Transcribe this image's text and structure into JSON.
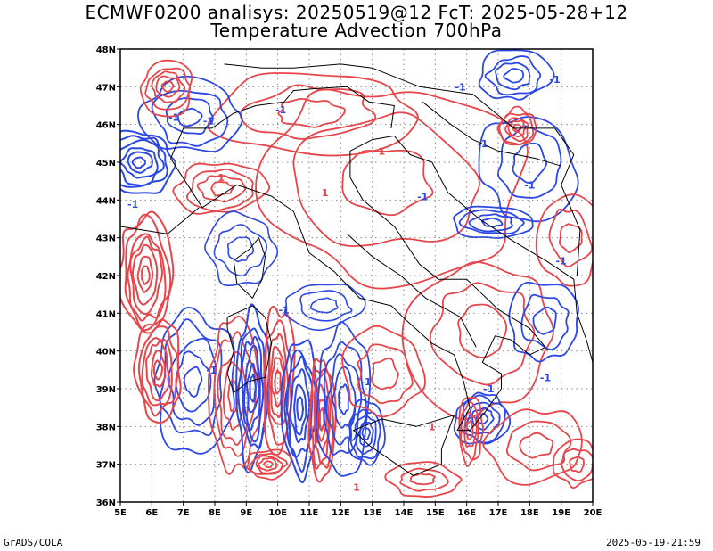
{
  "title": {
    "line1": "ECMWF0200 analisys: 20250519@12 FcT: 2025-05-28+12",
    "line2": "Temperature Advection 700hPa"
  },
  "map": {
    "lon_range": [
      5,
      20
    ],
    "lat_range": [
      36,
      48
    ],
    "lon_ticks": [
      "5E",
      "6E",
      "7E",
      "8E",
      "9E",
      "10E",
      "11E",
      "12E",
      "13E",
      "14E",
      "15E",
      "16E",
      "17E",
      "18E",
      "19E",
      "20E"
    ],
    "lat_ticks": [
      "36N",
      "37N",
      "38N",
      "39N",
      "40N",
      "41N",
      "42N",
      "43N",
      "44N",
      "45N",
      "46N",
      "47N",
      "48N"
    ],
    "grid": true,
    "warm_color": "#e8454a",
    "cold_color": "#2b48e6",
    "coast_color": "#000000",
    "contour_labels": [
      "-1",
      "1"
    ]
  },
  "footer": {
    "credit": "GrADS/COLA",
    "timestamp": "2025-05-19-21:59"
  }
}
